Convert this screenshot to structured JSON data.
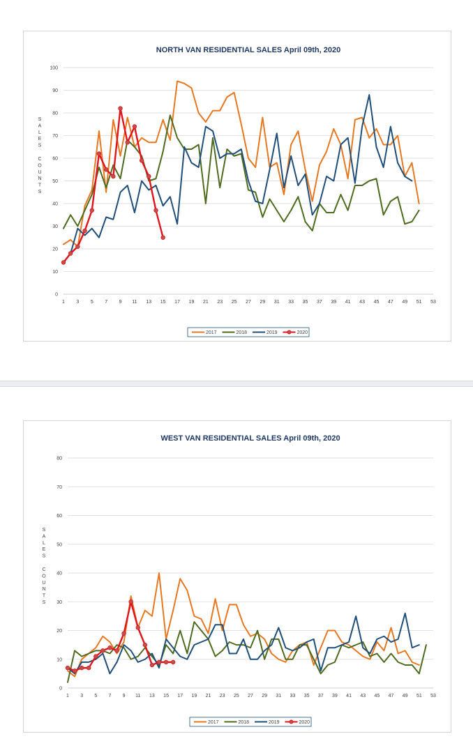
{
  "colors": {
    "2017": "#e87722",
    "2018": "#4e6b1f",
    "2019": "#1f4e79",
    "2020": "#e0141b",
    "grid": "#d9d9d9"
  },
  "chart_data": [
    {
      "type": "line",
      "title": "NORTH VAN RESIDENTIAL SALES April 09th, 2020",
      "ylabel": "SALES COUNTS",
      "ylim": [
        0,
        100
      ],
      "yticks": [
        0,
        10,
        20,
        30,
        40,
        50,
        60,
        70,
        80,
        90,
        100
      ],
      "xlim": [
        1,
        53
      ],
      "xticks": [
        1,
        3,
        5,
        7,
        9,
        11,
        13,
        15,
        17,
        19,
        21,
        23,
        25,
        27,
        29,
        31,
        33,
        35,
        37,
        39,
        41,
        43,
        45,
        47,
        49,
        51,
        53
      ],
      "grid": true,
      "legend": "bottom",
      "series": [
        {
          "name": "2017",
          "values": [
            22,
            24,
            21,
            39,
            46,
            72,
            45,
            77,
            61,
            78,
            65,
            69,
            67,
            67,
            77,
            68,
            94,
            93,
            91,
            80,
            76,
            81,
            81,
            87,
            89,
            75,
            60,
            56,
            78,
            56,
            58,
            44,
            66,
            72,
            55,
            41,
            57,
            63,
            73,
            66,
            51,
            77,
            78,
            69,
            73,
            66,
            66,
            70,
            52,
            58,
            40
          ]
        },
        {
          "name": "2018",
          "values": [
            29,
            35,
            30,
            37,
            44,
            56,
            47,
            57,
            51,
            68,
            65,
            61,
            50,
            51,
            63,
            79,
            69,
            64,
            64,
            66,
            40,
            69,
            47,
            64,
            61,
            62,
            46,
            45,
            34,
            42,
            37,
            32,
            37,
            43,
            32,
            28,
            40,
            36,
            36,
            44,
            37,
            48,
            48,
            50,
            51,
            35,
            41,
            43,
            31,
            32,
            37
          ]
        },
        {
          "name": "2019",
          "values": [
            14,
            18,
            29,
            26,
            29,
            25,
            34,
            33,
            45,
            48,
            36,
            50,
            46,
            48,
            39,
            43,
            31,
            65,
            58,
            56,
            74,
            72,
            60,
            62,
            62,
            64,
            50,
            41,
            40,
            55,
            71,
            47,
            61,
            48,
            53,
            35,
            40,
            52,
            50,
            66,
            69,
            49,
            74,
            88,
            65,
            56,
            74,
            58,
            52,
            50
          ]
        },
        {
          "name": "2020",
          "values": [
            14,
            18,
            21,
            28,
            37,
            62,
            55,
            52,
            82,
            67,
            74,
            59,
            52,
            37,
            25
          ]
        }
      ]
    },
    {
      "type": "line",
      "title": "WEST VAN RESIDENTIAL SALES April 09th, 2020",
      "ylabel": "SALES COUNTS",
      "ylim": [
        0,
        80
      ],
      "yticks": [
        0,
        10,
        20,
        30,
        40,
        50,
        60,
        70,
        80
      ],
      "xlim": [
        1,
        53
      ],
      "xticks": [
        1,
        3,
        5,
        7,
        9,
        11,
        13,
        15,
        17,
        19,
        21,
        23,
        25,
        27,
        29,
        31,
        33,
        35,
        37,
        39,
        41,
        43,
        45,
        47,
        49,
        51,
        53
      ],
      "grid": true,
      "legend": "bottom",
      "series": [
        {
          "name": "2017",
          "values": [
            6,
            4,
            10,
            12,
            14,
            18,
            16,
            12,
            16,
            32,
            21,
            27,
            25,
            40,
            17,
            27,
            38,
            34,
            25,
            24,
            19,
            31,
            20,
            29,
            29,
            22,
            18,
            19,
            17,
            12,
            10,
            9,
            13,
            15,
            16,
            8,
            14,
            20,
            20,
            16,
            15,
            13,
            11,
            10,
            16,
            13,
            21,
            12,
            13,
            9,
            8
          ]
        },
        {
          "name": "2018",
          "values": [
            2,
            13,
            11,
            12,
            13,
            13,
            12,
            15,
            14,
            10,
            11,
            14,
            11,
            8,
            15,
            12,
            20,
            12,
            23,
            20,
            17,
            11,
            13,
            16,
            15,
            15,
            14,
            20,
            10,
            17,
            17,
            10,
            10,
            15,
            15,
            10,
            5,
            8,
            9,
            15,
            14,
            15,
            16,
            11,
            12,
            9,
            12,
            9,
            8,
            8,
            5,
            15
          ]
        },
        {
          "name": "2019",
          "values": [
            7,
            5,
            9,
            9,
            10,
            12,
            5,
            9,
            15,
            13,
            9,
            10,
            12,
            7,
            17,
            14,
            11,
            10,
            15,
            16,
            17,
            22,
            22,
            12,
            12,
            17,
            10,
            10,
            13,
            15,
            21,
            14,
            13,
            14,
            16,
            17,
            6,
            14,
            14,
            15,
            16,
            25,
            14,
            12,
            17,
            18,
            16,
            17,
            26,
            14,
            15
          ]
        },
        {
          "name": "2020",
          "values": [
            7,
            6,
            7,
            7,
            11,
            13,
            14,
            13,
            19,
            30,
            21,
            15,
            8,
            9,
            9,
            9
          ]
        }
      ]
    }
  ]
}
